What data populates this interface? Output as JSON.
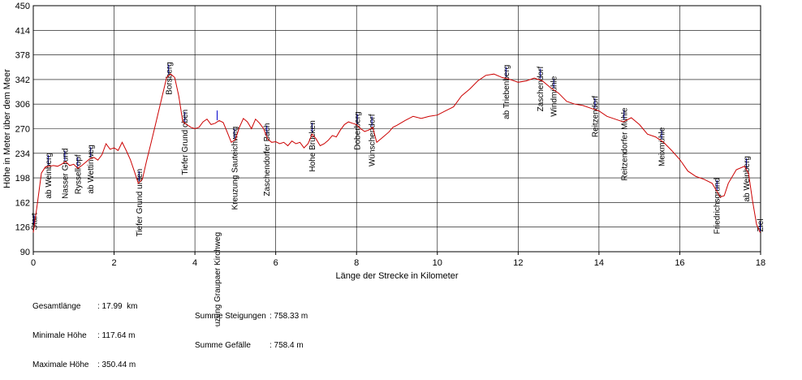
{
  "chart_data": {
    "type": "line",
    "xlabel": "Länge der Strecke in Kilometer",
    "ylabel": "Höhe in Meter über dem Meer",
    "xlim": [
      0,
      18
    ],
    "ylim": [
      90,
      450
    ],
    "xticks": [
      0,
      2,
      4,
      6,
      8,
      10,
      12,
      14,
      16,
      18
    ],
    "yticks": [
      90,
      126,
      162,
      198,
      234,
      270,
      306,
      342,
      378,
      414,
      450
    ],
    "grid": true,
    "line_color": "#cc0000",
    "marker_color": "#0000cc",
    "series": [
      {
        "x": [
          0,
          0.1,
          0.2,
          0.3,
          0.4,
          0.5,
          0.6,
          0.7,
          0.8,
          0.9,
          1.0,
          1.1,
          1.2,
          1.3,
          1.4,
          1.5,
          1.6,
          1.7,
          1.8,
          1.9,
          2.0,
          2.1,
          2.2,
          2.3,
          2.4,
          2.5,
          2.6,
          2.7,
          2.8,
          2.9,
          3.0,
          3.1,
          3.2,
          3.3,
          3.4,
          3.5,
          3.6,
          3.7,
          3.8,
          3.9,
          4.0,
          4.1,
          4.2,
          4.3,
          4.4,
          4.5,
          4.6,
          4.7,
          4.8,
          4.9,
          5.0,
          5.1,
          5.2,
          5.3,
          5.4,
          5.5,
          5.6,
          5.7,
          5.8,
          5.9,
          6.0,
          6.1,
          6.2,
          6.3,
          6.4,
          6.5,
          6.6,
          6.7,
          6.8,
          6.9,
          7.0,
          7.1,
          7.2,
          7.3,
          7.4,
          7.5,
          7.6,
          7.7,
          7.8,
          7.9,
          8.0,
          8.1,
          8.2,
          8.3,
          8.4,
          8.5,
          8.6,
          8.7,
          8.8,
          8.9,
          9.0,
          9.2,
          9.4,
          9.6,
          9.8,
          10.0,
          10.2,
          10.4,
          10.6,
          10.8,
          11.0,
          11.2,
          11.4,
          11.6,
          11.8,
          12.0,
          12.2,
          12.4,
          12.6,
          12.8,
          13.0,
          13.2,
          13.4,
          13.6,
          13.8,
          14.0,
          14.2,
          14.4,
          14.6,
          14.8,
          15.0,
          15.2,
          15.4,
          15.6,
          15.8,
          16.0,
          16.2,
          16.4,
          16.6,
          16.8,
          17.0,
          17.1,
          17.2,
          17.4,
          17.6,
          17.7,
          17.8,
          17.9,
          17.99
        ],
        "y": [
          118,
          160,
          205,
          214,
          215,
          216,
          215,
          218,
          222,
          216,
          218,
          212,
          216,
          221,
          226,
          228,
          224,
          232,
          248,
          240,
          242,
          238,
          250,
          238,
          225,
          208,
          190,
          196,
          222,
          246,
          270,
          295,
          320,
          345,
          350,
          345,
          318,
          280,
          276,
          272,
          270,
          272,
          280,
          284,
          276,
          278,
          282,
          279,
          265,
          250,
          254,
          272,
          285,
          280,
          270,
          284,
          278,
          270,
          255,
          250,
          251,
          248,
          250,
          245,
          252,
          248,
          250,
          242,
          248,
          262,
          255,
          245,
          248,
          253,
          260,
          258,
          268,
          276,
          280,
          278,
          276,
          270,
          266,
          268,
          272,
          250,
          255,
          260,
          265,
          272,
          275,
          282,
          288,
          285,
          288,
          290,
          296,
          302,
          318,
          328,
          340,
          348,
          350,
          345,
          342,
          338,
          340,
          344,
          340,
          330,
          322,
          310,
          306,
          304,
          300,
          296,
          288,
          284,
          280,
          286,
          276,
          262,
          258,
          250,
          238,
          225,
          208,
          200,
          196,
          190,
          170,
          172,
          190,
          210,
          215,
          205,
          165,
          130,
          118
        ]
      }
    ],
    "waypoints": [
      {
        "label": "Start",
        "x": 0.02
      },
      {
        "label": "ab Weinberg",
        "x": 0.37
      },
      {
        "label": "Nasser Grund",
        "x": 0.78
      },
      {
        "label": "Rysselkopf",
        "x": 1.1
      },
      {
        "label": "ab Wettinweg",
        "x": 1.42
      },
      {
        "label": "Tiefer Grund unten",
        "x": 2.62
      },
      {
        "label": "Borsberg",
        "x": 3.35
      },
      {
        "label": "Tiefer Grund oben",
        "x": 3.75
      },
      {
        "label": "Kreuzung Graupaer Kirchweg",
        "x": 4.55
      },
      {
        "label": "Kreuzung Sauteichweg",
        "x": 4.98
      },
      {
        "label": "Zaschendorfer Bach",
        "x": 5.78
      },
      {
        "label": "Hohe Brücken",
        "x": 6.9
      },
      {
        "label": "Doberberg",
        "x": 8.02
      },
      {
        "label": "Wünschendorf",
        "x": 8.38
      },
      {
        "label": "ab Triebenberg",
        "x": 11.7
      },
      {
        "label": "Zaschendorf",
        "x": 12.55
      },
      {
        "label": "Windmühle",
        "x": 12.88
      },
      {
        "label": "Reitzendorf",
        "x": 13.9
      },
      {
        "label": "Reitzendorfer Mühle",
        "x": 14.62
      },
      {
        "label": "Meixmühle",
        "x": 15.55
      },
      {
        "label": "Friedrichsgrund",
        "x": 16.92
      },
      {
        "label": "ab Weinberg",
        "x": 17.65
      },
      {
        "label": "Ziel",
        "x": 17.99
      }
    ]
  },
  "stats": {
    "gesamtlaenge_label": "Gesamtlänge",
    "gesamtlaenge_value": ": 17.99  km",
    "min_label": "Minimale Höhe",
    "min_value": ": 117.64 m",
    "max_label": "Maximale Höhe",
    "max_value": ": 350.44 m",
    "steig_label": "Summe Steigungen",
    "steig_value": ": 758.33 m",
    "gefaelle_label": "Summe Gefälle",
    "gefaelle_value": ": 758.4 m"
  }
}
